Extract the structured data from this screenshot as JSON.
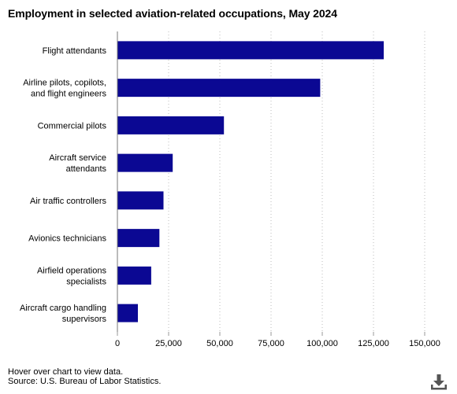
{
  "chart_data": {
    "type": "bar",
    "orientation": "horizontal",
    "title": "Employment in selected aviation-related occupations, May 2024",
    "categories": [
      "Flight attendants",
      "Airline pilots, copilots, and flight engineers",
      "Commercial pilots",
      "Aircraft service attendants",
      "Air traffic controllers",
      "Avionics technicians",
      "Airfield operations specialists",
      "Aircraft cargo handling supervisors"
    ],
    "category_lines": [
      [
        "Flight attendants"
      ],
      [
        "Airline pilots, copilots,",
        "and flight engineers"
      ],
      [
        "Commercial pilots"
      ],
      [
        "Aircraft service",
        "attendants"
      ],
      [
        "Air traffic controllers"
      ],
      [
        "Avionics technicians"
      ],
      [
        "Airfield operations",
        "specialists"
      ],
      [
        "Aircraft cargo handling",
        "supervisors"
      ]
    ],
    "values": [
      130000,
      99000,
      52000,
      27000,
      22500,
      20500,
      16500,
      10000
    ],
    "xlim": [
      0,
      150000
    ],
    "ticks": [
      0,
      25000,
      50000,
      75000,
      100000,
      125000,
      150000
    ],
    "tick_labels": [
      "0",
      "25,000",
      "50,000",
      "75,000",
      "100,000",
      "125,000",
      "150,000"
    ],
    "xlabel": "",
    "ylabel": "",
    "grid": "vertical dotted",
    "bar_color": "#0b0893"
  },
  "footer": {
    "note": "Hover over chart to view data.",
    "source": "Source: U.S. Bureau of Labor Statistics."
  },
  "icons": {
    "download": "download-icon"
  }
}
